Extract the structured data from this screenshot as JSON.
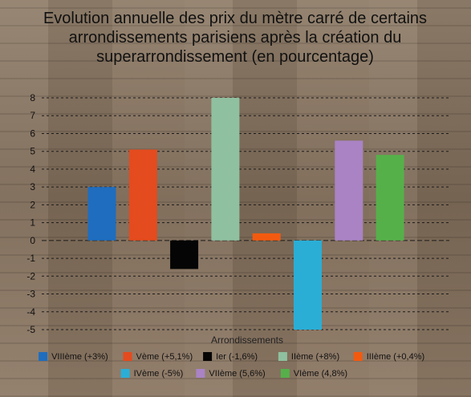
{
  "chart_data": {
    "type": "bar",
    "title_lines": [
      "Evolution annuelle des prix du mètre carré de certains",
      "arrondissements parisiens après la création du",
      "superarrondissement (en pourcentage)"
    ],
    "xlabel": "Arrondissements",
    "ylabel": "",
    "ylim": [
      -5,
      8
    ],
    "yticks": [
      "8",
      "7",
      "6",
      "5",
      "4",
      "3",
      "2",
      "1",
      "0",
      "-1",
      "-2",
      "-3",
      "-4",
      "-5"
    ],
    "grid": true,
    "legend_position": "bottom",
    "series": [
      {
        "name": "VIIIème (+3%)",
        "value": 3,
        "color": "#1f6dbf"
      },
      {
        "name": "Vème (+5,1%)",
        "value": 5.1,
        "color": "#e44b1e"
      },
      {
        "name": "Ier (-1,6%)",
        "value": -1.6,
        "color": "#050505"
      },
      {
        "name": "IIème (+8%)",
        "value": 8,
        "color": "#8fc09f"
      },
      {
        "name": "IIIème (+0,4%)",
        "value": 0.4,
        "color": "#f25a10"
      },
      {
        "name": "IVème (-5%)",
        "value": -5,
        "color": "#2aaed6"
      },
      {
        "name": "VIIème (5,6%)",
        "value": 5.6,
        "color": "#a983c4"
      },
      {
        "name": "VIème (4,8%)",
        "value": 4.8,
        "color": "#56b04a"
      }
    ]
  }
}
